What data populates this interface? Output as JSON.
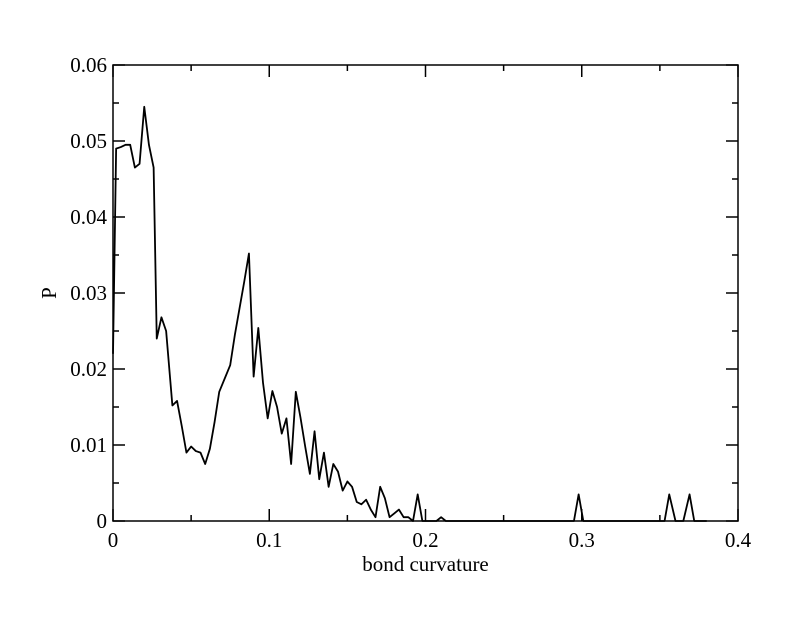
{
  "chart_data": {
    "type": "line",
    "title": "",
    "xlabel": "bond curvature",
    "ylabel": "P",
    "xlim": [
      0,
      0.4
    ],
    "ylim": [
      0,
      0.06
    ],
    "x_ticks": [
      0,
      0.1,
      0.2,
      0.3,
      0.4
    ],
    "x_tick_labels": [
      "0",
      "0.1",
      "0.2",
      "0.3",
      "0.4"
    ],
    "y_ticks": [
      0,
      0.01,
      0.02,
      0.03,
      0.04,
      0.05,
      0.06
    ],
    "y_tick_labels": [
      "0",
      "0.01",
      "0.02",
      "0.03",
      "0.04",
      "0.05",
      "0.06"
    ],
    "grid": false,
    "legend": "none",
    "line_color": "#000000",
    "series": [
      {
        "x": [
          0,
          0.002,
          0.005,
          0.008,
          0.011,
          0.014,
          0.017,
          0.02,
          0.023,
          0.026,
          0.028,
          0.031,
          0.034,
          0.038,
          0.041,
          0.044,
          0.047,
          0.05,
          0.053,
          0.056,
          0.059,
          0.062,
          0.065,
          0.068,
          0.072,
          0.075,
          0.078,
          0.081,
          0.084,
          0.087,
          0.09,
          0.093,
          0.096,
          0.099,
          0.102,
          0.105,
          0.108,
          0.111,
          0.114,
          0.117,
          0.12,
          0.123,
          0.126,
          0.129,
          0.132,
          0.135,
          0.138,
          0.141,
          0.144,
          0.147,
          0.15,
          0.153,
          0.156,
          0.159,
          0.162,
          0.165,
          0.168,
          0.171,
          0.174,
          0.177,
          0.18,
          0.183,
          0.186,
          0.189,
          0.192,
          0.195,
          0.198,
          0.201,
          0.204,
          0.207,
          0.21,
          0.213,
          0.216,
          0.219,
          0.222,
          0.225,
          0.228,
          0.231,
          0.234,
          0.237,
          0.24,
          0.243,
          0.246,
          0.249,
          0.252,
          0.255,
          0.258,
          0.261,
          0.264,
          0.267,
          0.27,
          0.275,
          0.28,
          0.285,
          0.29,
          0.295,
          0.298,
          0.301,
          0.305,
          0.31,
          0.32,
          0.33,
          0.34,
          0.35,
          0.353,
          0.356,
          0.36,
          0.365,
          0.369,
          0.372,
          0.376,
          0.38
        ],
        "y": [
          0.022,
          0.049,
          0.0492,
          0.0495,
          0.0495,
          0.0465,
          0.047,
          0.0545,
          0.0495,
          0.0465,
          0.024,
          0.0268,
          0.025,
          0.0152,
          0.0158,
          0.0125,
          0.009,
          0.0098,
          0.0092,
          0.009,
          0.0075,
          0.0095,
          0.013,
          0.017,
          0.019,
          0.0205,
          0.0245,
          0.028,
          0.0315,
          0.0352,
          0.019,
          0.0254,
          0.0182,
          0.0135,
          0.0171,
          0.015,
          0.0115,
          0.0135,
          0.0075,
          0.017,
          0.0136,
          0.0098,
          0.0062,
          0.0118,
          0.0055,
          0.009,
          0.0045,
          0.0075,
          0.0065,
          0.004,
          0.0052,
          0.0045,
          0.0025,
          0.0022,
          0.0028,
          0.0015,
          0.0005,
          0.0045,
          0.003,
          0.0005,
          0.001,
          0.0015,
          0.0005,
          0.0005,
          0.0,
          0.0035,
          0.0,
          0.0,
          0.0,
          0.0,
          0.0005,
          0.0,
          0.0,
          0.0,
          0.0,
          0.0,
          0.0,
          0.0,
          0.0,
          0.0,
          0.0,
          0.0,
          0.0,
          0.0,
          0.0,
          0.0,
          0.0,
          0.0,
          0.0,
          0.0,
          0.0,
          0.0,
          0.0,
          0.0,
          0.0,
          0.0,
          0.0035,
          0.0,
          0.0,
          0.0,
          0.0,
          0.0,
          0.0,
          0.0,
          0.0,
          0.0035,
          0.0,
          0.0,
          0.0035,
          0.0,
          0.0,
          0.0
        ]
      }
    ]
  }
}
